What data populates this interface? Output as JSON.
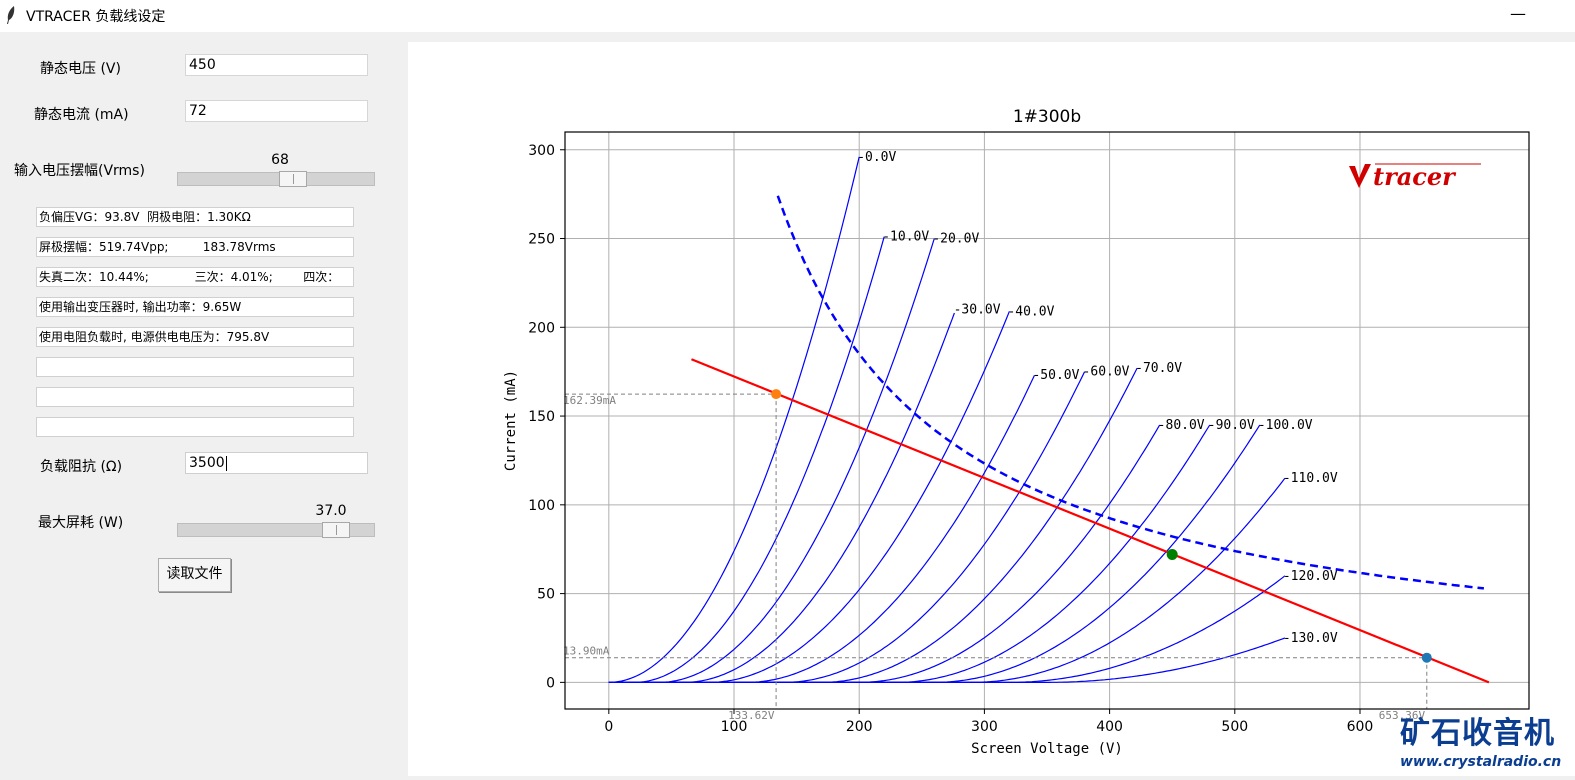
{
  "window": {
    "title": "VTRACER 负载线设定",
    "minimize_glyph": "—"
  },
  "form": {
    "static_voltage_label": "静态电压 (V)",
    "static_voltage_value": "450",
    "static_current_label": "静态电流 (mA)",
    "static_current_value": "72",
    "input_swing_label": "输入电压摆幅(Vrms)",
    "input_swing_value": "68",
    "input_swing_fraction": 0.6,
    "info_lines": [
      "负偏压VG：93.8V  阴极电阻：1.30KΩ",
      "屏极摆幅：519.74Vpp;         183.78Vrms",
      "失真二次：10.44%;            三次：4.01%;        四次：",
      "使用输出变压器时, 输出功率：9.65W",
      "使用电阻负载时, 电源供电电压为：795.8V",
      "",
      "",
      ""
    ],
    "load_impedance_label": "负载阻抗 (Ω)",
    "load_impedance_value": "3500",
    "max_dissipation_label": "最大屏耗 (W)",
    "max_dissipation_value": "37.0",
    "max_dissipation_fraction": 0.86,
    "read_file_button": "读取文件"
  },
  "watermark": {
    "logo_text": "tracer",
    "site_cn": "矿石收音机",
    "site_url": "www.crystalradio.cn"
  },
  "colors": {
    "curves": "#0000ff",
    "loadline": "#ff0000",
    "dissipation": "#0000ff",
    "quiescent": "#008000",
    "endpoint": "#1f77b4",
    "endpoint_top": "#ff7f0e"
  },
  "chart_data": {
    "type": "line",
    "title": "1#300b",
    "xlabel": "Screen Voltage (V)",
    "ylabel": "Current (mA)",
    "xlim": [
      -35,
      735
    ],
    "ylim": [
      -15,
      310
    ],
    "xticks": [
      "0",
      "100",
      "200",
      "300",
      "400",
      "500",
      "600"
    ],
    "xtick_values": [
      0,
      100,
      200,
      300,
      400,
      500,
      600
    ],
    "yticks": [
      "0",
      "50",
      "100",
      "150",
      "200",
      "250",
      "300"
    ],
    "ytick_values": [
      0,
      50,
      100,
      150,
      200,
      250,
      300
    ],
    "grid": true,
    "curve_family": [
      {
        "label": "-0.0V",
        "v0": 0,
        "vend": 200,
        "iend": 296
      },
      {
        "label": "-10.0V",
        "v0": 20,
        "vend": 220,
        "iend": 251
      },
      {
        "label": "-20.0V",
        "v0": 40,
        "vend": 260,
        "iend": 250
      },
      {
        "label": "-30.0V",
        "v0": 60,
        "vend": 277,
        "iend": 210
      },
      {
        "label": "-40.0V",
        "v0": 80,
        "vend": 320,
        "iend": 209
      },
      {
        "label": "-50.0V",
        "v0": 110,
        "vend": 340,
        "iend": 173
      },
      {
        "label": "-60.0V",
        "v0": 140,
        "vend": 380,
        "iend": 175
      },
      {
        "label": "-70.0V",
        "v0": 170,
        "vend": 422,
        "iend": 177
      },
      {
        "label": "-80.0V",
        "v0": 200,
        "vend": 440,
        "iend": 145
      },
      {
        "label": "-90.0V",
        "v0": 230,
        "vend": 480,
        "iend": 145
      },
      {
        "label": "-100.0V",
        "v0": 260,
        "vend": 520,
        "iend": 145
      },
      {
        "label": "-110.0V",
        "v0": 290,
        "vend": 540,
        "iend": 115
      },
      {
        "label": "-120.0V",
        "v0": 320,
        "vend": 540,
        "iend": 60
      },
      {
        "label": "-130.0V",
        "v0": 350,
        "vend": 540,
        "iend": 25
      }
    ],
    "load_line": {
      "x": [
        66,
        703
      ],
      "y": [
        182,
        0
      ]
    },
    "dissipation_curve": {
      "watts": 37.0,
      "x_range": [
        135,
        700
      ]
    },
    "quiescent_point": {
      "x": 450,
      "y": 72
    },
    "swing_top": {
      "x": 133.62,
      "y": 162.39,
      "xlabel": "133.62V",
      "ylabel": "162.39mA"
    },
    "swing_bottom": {
      "x": 653.36,
      "y": 13.9,
      "xlabel": "653.36V",
      "ylabel": "13.90mA"
    }
  }
}
